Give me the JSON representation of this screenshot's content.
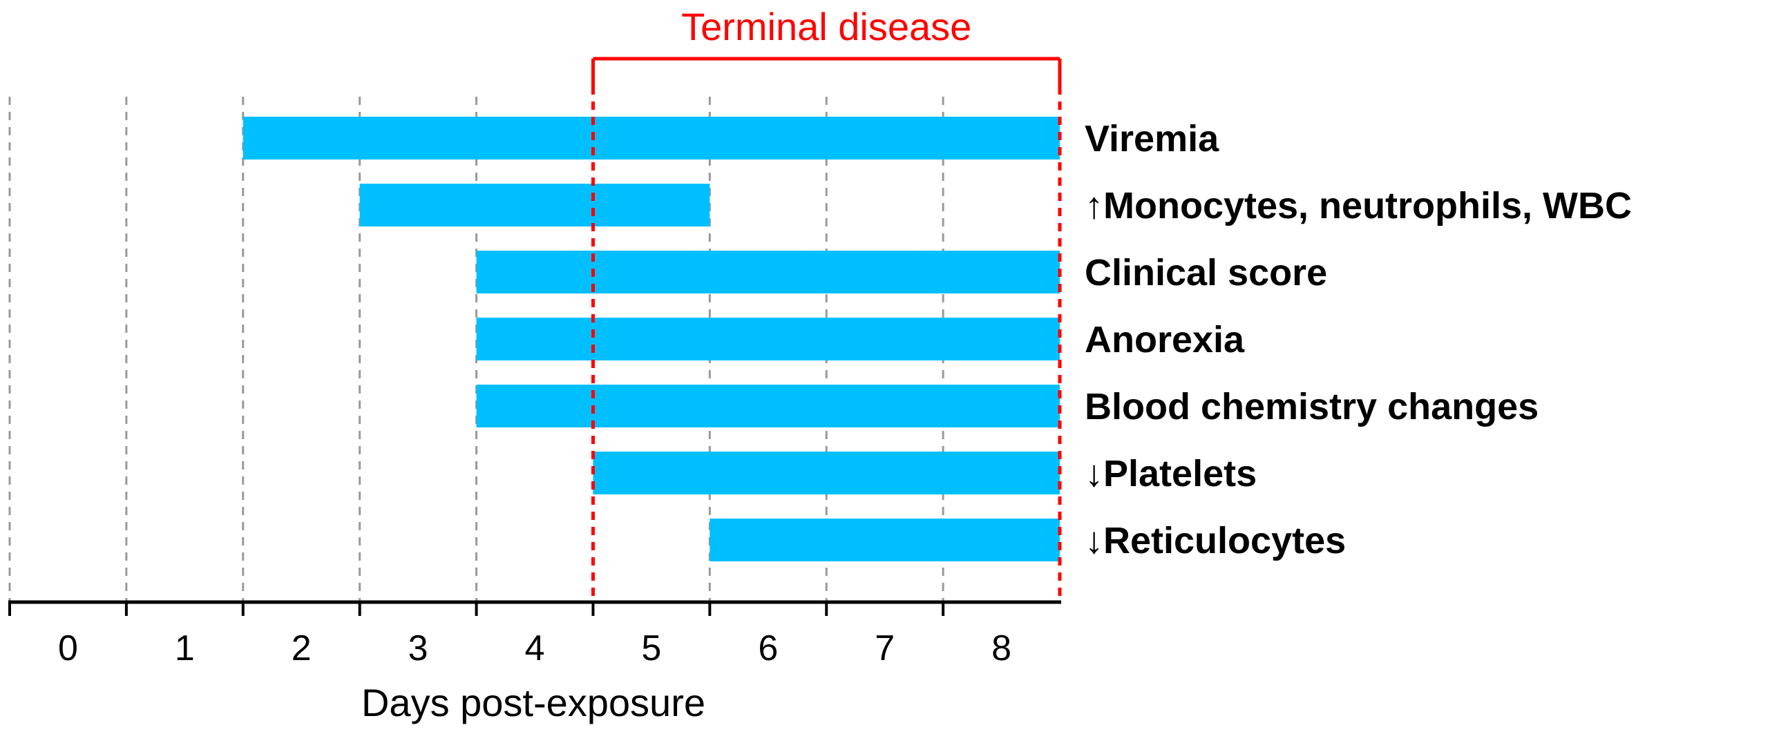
{
  "chart_data": {
    "type": "gantt",
    "xlabel": "Days post-exposure",
    "days": [
      0,
      1,
      2,
      3,
      4,
      5,
      6,
      7,
      8
    ],
    "xlim": [
      -0.5,
      8.5
    ],
    "bars": [
      {
        "label": "Viremia",
        "start": 1.5,
        "end": 8.5
      },
      {
        "label": "↑Monocytes, neutrophils, WBC",
        "start": 2.5,
        "end": 5.5
      },
      {
        "label": "Clinical score",
        "start": 3.5,
        "end": 8.5
      },
      {
        "label": "Anorexia",
        "start": 3.5,
        "end": 8.5
      },
      {
        "label": "Blood chemistry changes",
        "start": 3.5,
        "end": 8.5
      },
      {
        "label": "↓Platelets",
        "start": 4.5,
        "end": 8.5
      },
      {
        "label": "↓Reticulocytes",
        "start": 5.5,
        "end": 8.5
      }
    ],
    "bracket": {
      "label": "Terminal disease",
      "start": 4.5,
      "end": 8.5
    },
    "colors": {
      "bar": "#00bfff",
      "bracket": "#ff0000",
      "gridline": "#999999",
      "axis": "#000000"
    }
  }
}
